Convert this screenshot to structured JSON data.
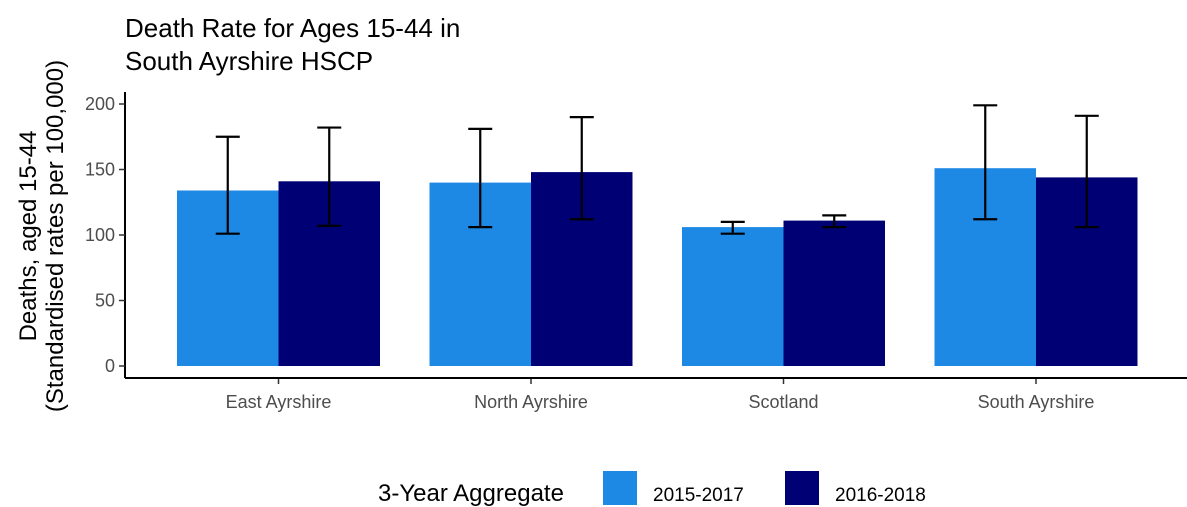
{
  "chart_data": {
    "type": "bar",
    "title_lines": [
      "Death Rate for Ages 15-44 in",
      "South Ayrshire HSCP"
    ],
    "ylabel_lines": [
      "Deaths, aged 15-44",
      "(Standardised rates per 100,000)"
    ],
    "xlabel": "",
    "categories": [
      "East Ayrshire",
      "North Ayrshire",
      "Scotland",
      "South Ayrshire"
    ],
    "ylim": [
      0,
      200
    ],
    "yticks": [
      0,
      50,
      100,
      150,
      200
    ],
    "grid": false,
    "legend": {
      "title": "3-Year Aggregate",
      "position": "bottom"
    },
    "series": [
      {
        "name": "2015-2017",
        "color": "#1e88e5",
        "values": [
          134,
          140,
          106,
          151
        ],
        "error_low": [
          101,
          106,
          101,
          112
        ],
        "error_high": [
          175,
          181,
          110,
          199
        ]
      },
      {
        "name": "2016-2018",
        "color": "#000075",
        "values": [
          141,
          148,
          111,
          144
        ],
        "error_low": [
          107,
          112,
          106,
          106
        ],
        "error_high": [
          182,
          190,
          115,
          191
        ]
      }
    ]
  }
}
